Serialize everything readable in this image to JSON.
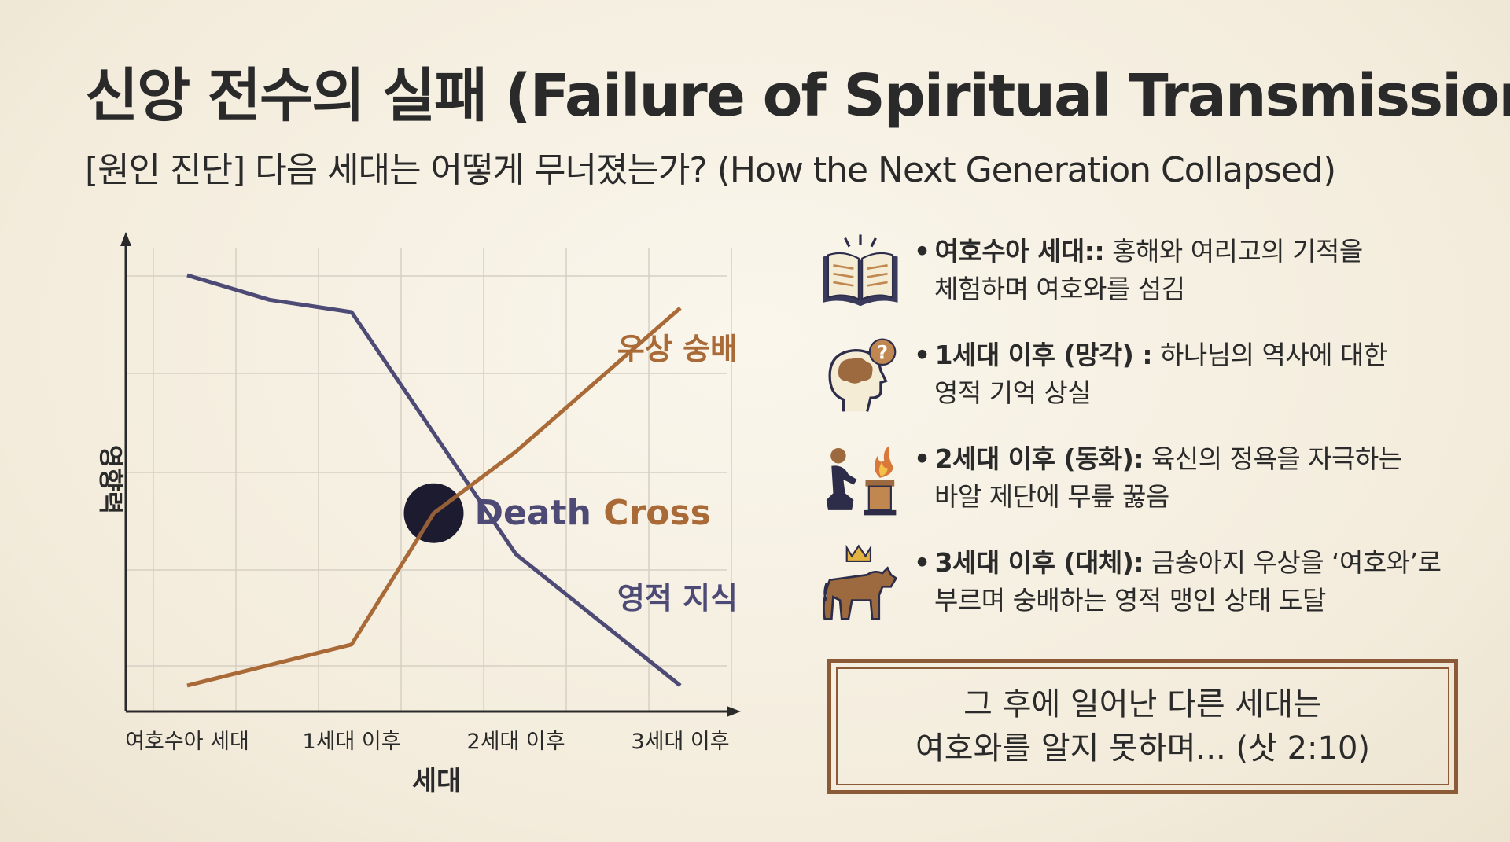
{
  "header": {
    "title": "신앙 전수의 실패 (Failure of Spiritual Transmission)",
    "subtitle": "[원인 진단] 다음 세대는 어떻게 무너졌는가? (How the Next Generation Collapsed)"
  },
  "chart_data": {
    "type": "line",
    "categories": [
      "여호수아 세대",
      "1세대 이후",
      "2세대 이후",
      "3세대 이후"
    ],
    "xlabel": "세대",
    "ylabel": "영향력",
    "series": [
      {
        "name": "영적 지식",
        "color": "#4d4b75",
        "x": [
          0,
          0.5,
          1,
          2,
          3
        ],
        "values": [
          10,
          9.4,
          9.1,
          3.2,
          0
        ]
      },
      {
        "name": "우상 숭배",
        "color": "#a96a38",
        "x": [
          0,
          1,
          1.5,
          2,
          3
        ],
        "values": [
          0,
          1,
          4.2,
          5.7,
          9.2
        ]
      }
    ],
    "annotation": {
      "text_1": "Death",
      "text_2": "Cross",
      "x": 1.5,
      "y": 4.2
    },
    "grid": true
  },
  "items": [
    {
      "icon": "open-book-icon",
      "head": "여호수아 세대::",
      "rest": " 홍해와 여리고의 기적을",
      "line2": "체험하며 여호와를 섬김"
    },
    {
      "icon": "forgetful-head-icon",
      "head": "1세대 이후 (망각) :",
      "rest": " 하나님의 역사에 대한",
      "line2": "영적 기억 상실"
    },
    {
      "icon": "kneeling-at-altar-icon",
      "head": "2세대 이후 (동화):",
      "rest": " 육신의 정욕을 자극하는",
      "line2": "바알 제단에 무릎 꿇음"
    },
    {
      "icon": "golden-calf-icon",
      "head": "3세대 이후 (대체):",
      "rest": " 금송아지 우상을 ‘여호와’로",
      "line2": "부르며 숭배하는 영적 맹인 상태 도달"
    }
  ],
  "quote": {
    "line1": "그 후에 일어난 다른 세대는",
    "line2": "여호와를 알지 못하며... (삿 2:10)"
  },
  "colors": {
    "knowledge": "#4d4b75",
    "idolatry": "#a96a38",
    "frame": "#8c5a36"
  }
}
